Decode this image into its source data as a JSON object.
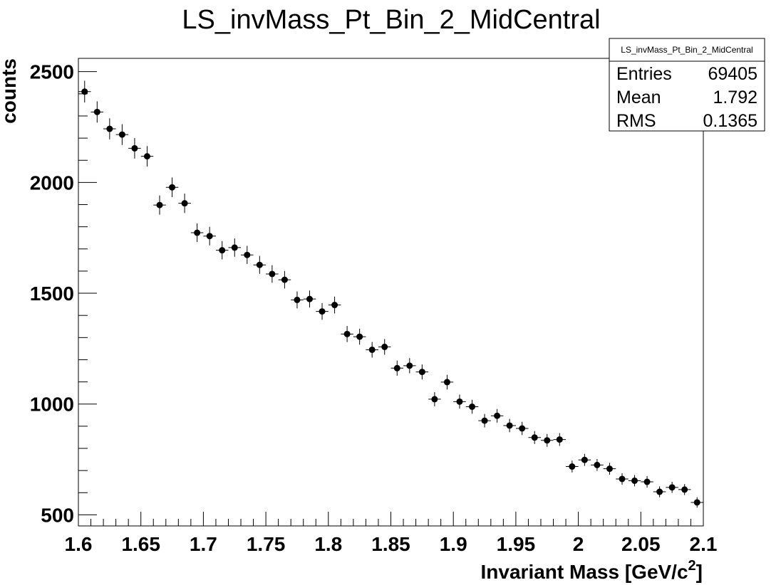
{
  "chart_data": {
    "type": "scatter",
    "title": "LS_invMass_Pt_Bin_2_MidCentral",
    "xlabel": "Invariant Mass [GeV/c",
    "xlabel_sup": "2",
    "xlabel_close": "]",
    "ylabel": "counts",
    "xlim": [
      1.6,
      2.1
    ],
    "ylim": [
      450,
      2560
    ],
    "x_ticks": [
      1.6,
      1.65,
      1.7,
      1.75,
      1.8,
      1.85,
      1.9,
      1.95,
      2,
      2.05,
      2.1
    ],
    "x_tick_labels": [
      "1.6",
      "1.65",
      "1.7",
      "1.75",
      "1.8",
      "1.85",
      "1.9",
      "1.95",
      "2",
      "2.05",
      "2.1"
    ],
    "y_ticks": [
      500,
      1000,
      1500,
      2000,
      2500
    ],
    "y_tick_labels": [
      "500",
      "1000",
      "1500",
      "2000",
      "2500"
    ],
    "bin_width": 0.01,
    "grid": false,
    "marker_color": "#000000",
    "x": [
      1.605,
      1.615,
      1.625,
      1.635,
      1.645,
      1.655,
      1.665,
      1.675,
      1.685,
      1.695,
      1.705,
      1.715,
      1.725,
      1.735,
      1.745,
      1.755,
      1.765,
      1.775,
      1.785,
      1.795,
      1.805,
      1.815,
      1.825,
      1.835,
      1.845,
      1.855,
      1.865,
      1.875,
      1.885,
      1.895,
      1.905,
      1.915,
      1.925,
      1.935,
      1.945,
      1.955,
      1.965,
      1.975,
      1.985,
      1.995,
      2.005,
      2.015,
      2.025,
      2.035,
      2.045,
      2.055,
      2.065,
      2.075,
      2.085,
      2.095
    ],
    "y": [
      2410,
      2318,
      2242,
      2216,
      2154,
      2118,
      1898,
      1978,
      1906,
      1773,
      1758,
      1694,
      1706,
      1673,
      1628,
      1587,
      1561,
      1470,
      1474,
      1418,
      1447,
      1316,
      1304,
      1245,
      1258,
      1162,
      1173,
      1145,
      1022,
      1099,
      1011,
      988,
      925,
      947,
      903,
      890,
      849,
      836,
      840,
      718,
      748,
      725,
      708,
      662,
      654,
      649,
      604,
      624,
      614,
      556
    ]
  },
  "stats_box": {
    "title": "LS_invMass_Pt_Bin_2_MidCentral",
    "rows": [
      {
        "label": "Entries",
        "value": "69405"
      },
      {
        "label": "Mean",
        "value": "1.792"
      },
      {
        "label": "RMS",
        "value": "0.1365"
      }
    ]
  }
}
